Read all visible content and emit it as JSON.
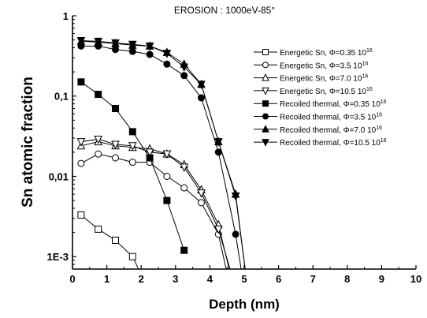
{
  "chart_data": {
    "type": "line",
    "title": "EROSION : 1000eV-85°",
    "xlabel": "Depth (nm)",
    "ylabel": "Sn atomic fraction",
    "xlim": [
      0,
      10
    ],
    "ylim": [
      0.0007,
      1
    ],
    "yscale": "log",
    "x_ticks": [
      "0",
      "1",
      "2",
      "3",
      "4",
      "5",
      "6",
      "7",
      "8",
      "9",
      "10"
    ],
    "y_ticks": [
      {
        "value": 1,
        "label": "1"
      },
      {
        "value": 0.1,
        "label": "0,1"
      },
      {
        "value": 0.01,
        "label": "0,01"
      },
      {
        "value": 0.001,
        "label": "1E-3"
      }
    ],
    "legend_position": "right",
    "series": [
      {
        "name": "Energetic Sn, Φ=0.35 10",
        "name_sup": "16",
        "marker": "square-open",
        "x": [
          0.25,
          0.75,
          1.25,
          1.75,
          2.0
        ],
        "y": [
          0.0033,
          0.0022,
          0.0016,
          0.001,
          0.0006
        ]
      },
      {
        "name": "Energetic Sn, Φ=3.5 10",
        "name_sup": "16",
        "marker": "circle-open",
        "x": [
          0.25,
          0.75,
          1.25,
          1.75,
          2.25,
          2.75,
          3.25,
          3.75,
          4.25,
          4.6
        ],
        "y": [
          0.0145,
          0.019,
          0.017,
          0.015,
          0.015,
          0.01,
          0.0072,
          0.0047,
          0.0019,
          0.0004
        ]
      },
      {
        "name": "Energetic Sn, Φ=7.0 10",
        "name_sup": "16",
        "marker": "triangle-up-open",
        "x": [
          0.25,
          0.75,
          1.25,
          1.75,
          2.25,
          2.75,
          3.25,
          3.75,
          4.25,
          4.7
        ],
        "y": [
          0.024,
          0.027,
          0.024,
          0.023,
          0.022,
          0.019,
          0.014,
          0.0068,
          0.0025,
          0.0004
        ]
      },
      {
        "name": "Energetic Sn, Φ=10.5 10",
        "name_sup": "16",
        "marker": "triangle-down-open",
        "x": [
          0.25,
          0.75,
          1.25,
          1.75,
          2.25,
          2.75,
          3.25,
          3.75,
          4.25,
          4.75
        ],
        "y": [
          0.027,
          0.029,
          0.025,
          0.024,
          0.02,
          0.019,
          0.013,
          0.0062,
          0.0022,
          0.0004
        ]
      },
      {
        "name": "Recoiled thermal, Φ=0.35 10",
        "name_sup": "16",
        "marker": "square-filled",
        "x": [
          0.25,
          0.75,
          1.25,
          1.75,
          2.25,
          2.75,
          3.25
        ],
        "y": [
          0.15,
          0.105,
          0.07,
          0.036,
          0.017,
          0.005,
          0.0012
        ]
      },
      {
        "name": "Recoiled thermal, Φ=3.5 10",
        "name_sup": "16",
        "marker": "circle-filled",
        "x": [
          0.25,
          0.75,
          1.25,
          1.75,
          2.25,
          2.75,
          3.25,
          3.75,
          4.25,
          4.75,
          5.0
        ],
        "y": [
          0.42,
          0.42,
          0.38,
          0.36,
          0.33,
          0.25,
          0.18,
          0.095,
          0.02,
          0.0019,
          0.0004
        ]
      },
      {
        "name": "Recoiled thermal, Φ=7.0 10",
        "name_sup": "16",
        "marker": "triangle-up-filled",
        "x": [
          0.25,
          0.75,
          1.25,
          1.75,
          2.25,
          2.75,
          3.25,
          3.75,
          4.25,
          4.75,
          5.1
        ],
        "y": [
          0.48,
          0.47,
          0.45,
          0.43,
          0.42,
          0.35,
          0.25,
          0.14,
          0.027,
          0.006,
          0.0004
        ]
      },
      {
        "name": "Recoiled thermal, Φ=10.5 10",
        "name_sup": "16",
        "marker": "triangle-down-filled",
        "x": [
          0.25,
          0.75,
          1.25,
          1.75,
          2.25,
          2.75,
          3.25,
          3.75,
          4.25,
          4.75,
          5.1
        ],
        "y": [
          0.49,
          0.48,
          0.46,
          0.44,
          0.42,
          0.34,
          0.23,
          0.14,
          0.027,
          0.0057,
          0.0004
        ]
      }
    ]
  }
}
